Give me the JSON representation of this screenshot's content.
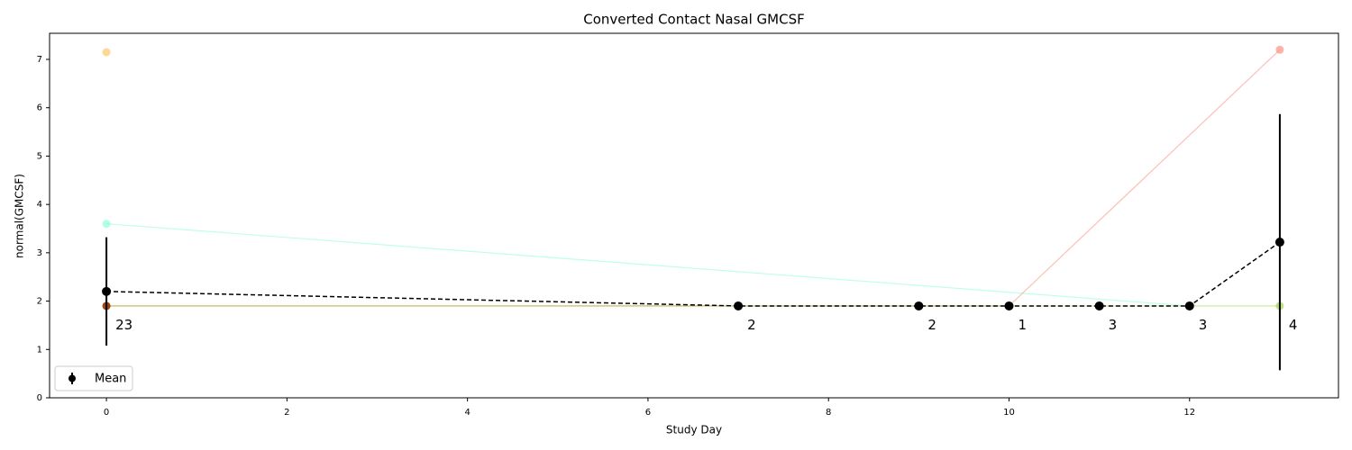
{
  "chart_data": {
    "type": "line",
    "title": "Converted Contact Nasal GMCSF",
    "xlabel": "Study Day",
    "ylabel": "normal(GMCSF)",
    "xlim": [
      -0.63,
      13.65
    ],
    "ylim": [
      0,
      7.54
    ],
    "xticks": [
      0,
      2,
      4,
      6,
      8,
      10,
      12
    ],
    "yticks": [
      0,
      1,
      2,
      3,
      4,
      5,
      6,
      7
    ],
    "legend": "lower left",
    "series": [
      {
        "x": [
          0
        ],
        "values": [
          7.15
        ],
        "color": "#ffc04d"
      },
      {
        "x": [
          0,
          12
        ],
        "values": [
          3.6,
          1.9
        ],
        "color": "#7fffd4"
      },
      {
        "x": [
          10,
          13
        ],
        "values": [
          1.9,
          7.2
        ],
        "color": "#fa8072"
      },
      {
        "x": [
          0,
          13
        ],
        "values": [
          1.9,
          1.9
        ],
        "color": "#9acd32"
      },
      {
        "x": [
          0,
          10
        ],
        "values": [
          1.9,
          1.9
        ],
        "color": "#b8860b"
      },
      {
        "x": [
          0
        ],
        "values": [
          1.9
        ],
        "color": "#8b0000"
      },
      {
        "name": "Mean",
        "x": [
          0,
          7,
          9,
          10,
          11,
          12,
          13
        ],
        "values": [
          2.2,
          1.9,
          1.9,
          1.9,
          1.9,
          1.9,
          3.22
        ],
        "errors": [
          1.12,
          0,
          0,
          0,
          0,
          0,
          2.65
        ],
        "color": "#000000",
        "annotations": [
          "23",
          "2",
          "2",
          "1",
          "3",
          "3",
          "4"
        ]
      }
    ]
  }
}
